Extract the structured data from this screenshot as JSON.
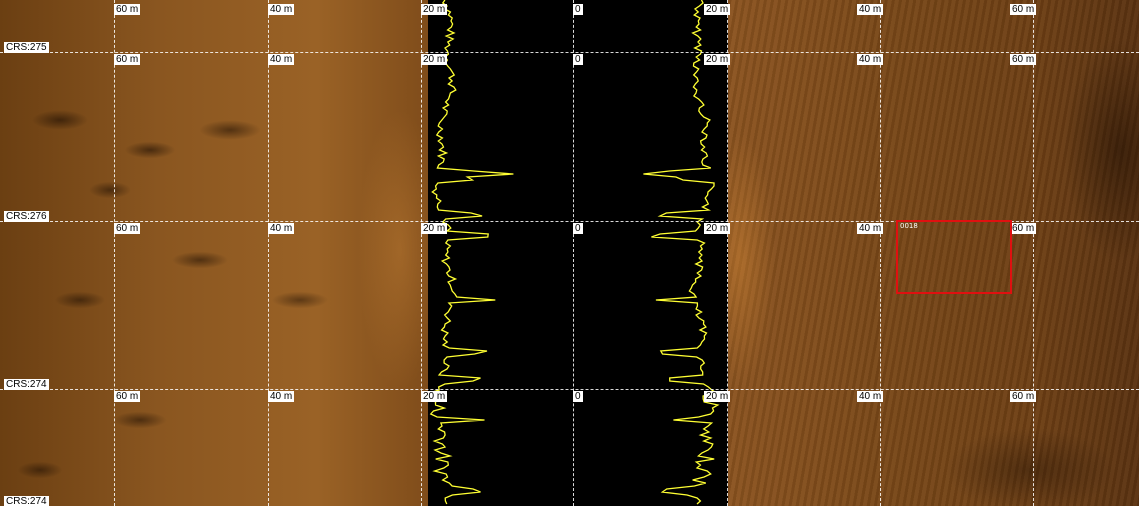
{
  "range_labels": {
    "port_60": "60 m",
    "port_40": "40 m",
    "port_20": "20 m",
    "nadir": "0",
    "stbd_20": "20 m",
    "stbd_40": "40 m",
    "stbd_60": "60 m"
  },
  "course_labels": [
    "CRS:275",
    "CRS:276",
    "CRS:274",
    "CRS:274"
  ],
  "target": {
    "label": "0018",
    "color": "#e01010"
  },
  "colors": {
    "trace": "#ffff33",
    "grid": "#ffffff",
    "seabed": "#8a5620",
    "water_column": "#000000"
  }
}
